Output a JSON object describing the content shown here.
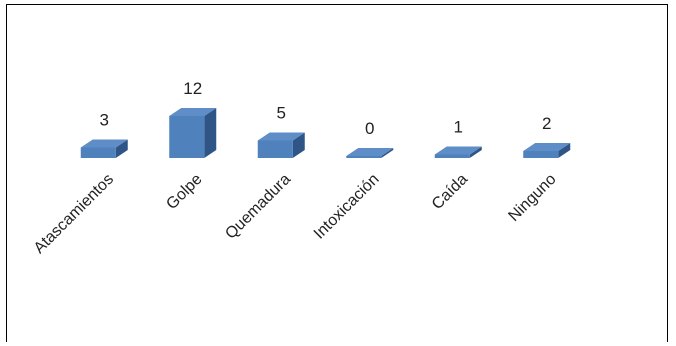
{
  "chart_data": {
    "type": "bar",
    "style": "3d-column",
    "categories": [
      "Atascamientos",
      "Golpe",
      "Quemadura",
      "Intoxicación",
      "Caída",
      "Ninguno"
    ],
    "values": [
      3,
      12,
      5,
      0,
      1,
      2
    ],
    "title": "",
    "xlabel": "",
    "ylabel": "",
    "ylim": [
      0,
      12
    ],
    "grid": false,
    "legend": "none",
    "colors": {
      "front": "#4f81bd",
      "top": "#5e8dc8",
      "side": "#2f5587",
      "text": "#222222"
    }
  }
}
